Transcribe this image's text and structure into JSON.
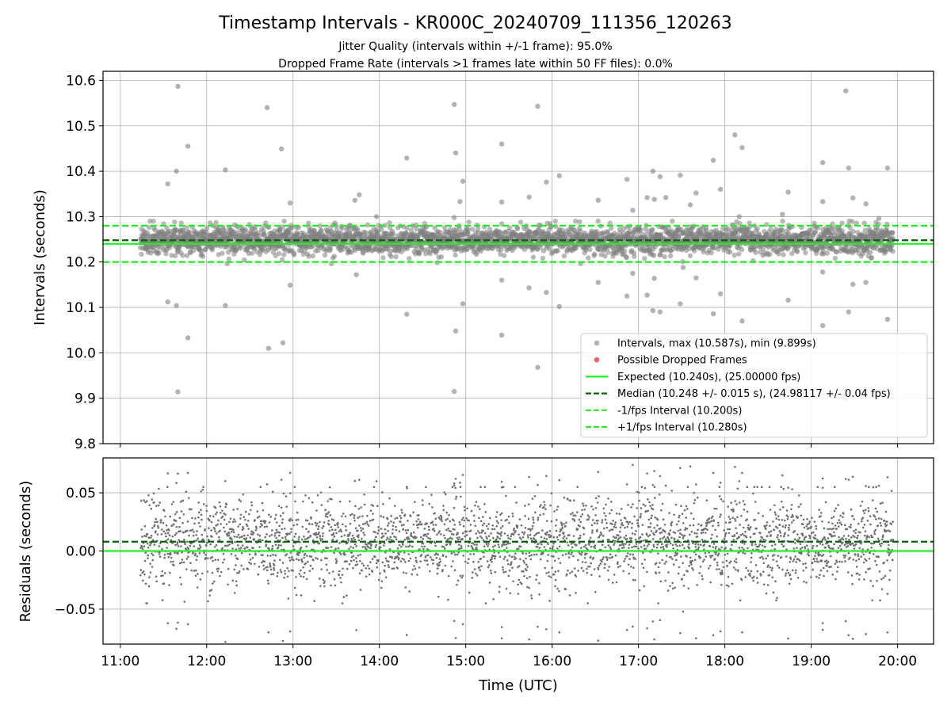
{
  "chart_data": [
    {
      "type": "scatter",
      "panel": "top",
      "title": "Timestamp Intervals - KR000C_20240709_111356_120263",
      "subtitles": [
        "Jitter Quality (intervals within +/-1 frame): 95.0%",
        "Dropped Frame Rate (intervals >1 frames late within 50 FF files): 0.0%"
      ],
      "xlabel": "",
      "ylabel": "Intervals (seconds)",
      "xlim": [
        "10:48",
        "20:25"
      ],
      "ylim": [
        9.8,
        10.62
      ],
      "yticks": [
        "9.8",
        "9.9",
        "10.0",
        "10.1",
        "10.2",
        "10.3",
        "10.4",
        "10.5",
        "10.6"
      ],
      "grid": true,
      "legend": {
        "placement": "lower-right",
        "entries": [
          {
            "label": "Intervals, max (10.587s), min (9.899s)",
            "marker": "circle",
            "color": "#808080"
          },
          {
            "label": "Possible Dropped Frames",
            "marker": "circle",
            "color": "#f25b5b"
          },
          {
            "label": "Expected (10.240s), (25.00000 fps)",
            "marker": "solid-line",
            "color": "#22ee22"
          },
          {
            "label": "Median (10.248 +/- 0.015 s), (24.98117 +/- 0.04 fps)",
            "marker": "dashed-line",
            "color": "#006400"
          },
          {
            "label": "-1/fps Interval (10.200s)",
            "marker": "dashed-line",
            "color": "#22ee22"
          },
          {
            "label": "+1/fps Interval (10.280s)",
            "marker": "dashed-line",
            "color": "#22ee22"
          }
        ]
      },
      "reference_lines": [
        {
          "name": "Expected",
          "y": 10.24,
          "style": "solid",
          "color": "#22ee22"
        },
        {
          "name": "Median",
          "y": 10.248,
          "style": "dashed",
          "color": "#006400"
        },
        {
          "name": "-1/fps Interval",
          "y": 10.2,
          "style": "dashed",
          "color": "#22ee22"
        },
        {
          "name": "+1/fps Interval",
          "y": 10.28,
          "style": "dashed",
          "color": "#22ee22"
        }
      ],
      "series": [
        {
          "name": "Intervals",
          "color": "#808080",
          "time_start": "11:14",
          "time_end": "19:57",
          "sample_interval_seconds": 10.24,
          "center_value": 10.248,
          "spread": 0.015,
          "max": 10.587,
          "min": 9.899,
          "outliers": [
            {
              "x": "11:40",
              "y": 10.587
            },
            {
              "x": "11:39",
              "y": 10.4
            },
            {
              "x": "11:47",
              "y": 10.455
            },
            {
              "x": "11:33",
              "y": 10.372
            },
            {
              "x": "11:33",
              "y": 10.112
            },
            {
              "x": "11:39",
              "y": 10.104
            },
            {
              "x": "11:47",
              "y": 10.033
            },
            {
              "x": "11:40",
              "y": 9.914
            },
            {
              "x": "12:13",
              "y": 10.403
            },
            {
              "x": "12:13",
              "y": 10.104
            },
            {
              "x": "12:42",
              "y": 10.54
            },
            {
              "x": "12:52",
              "y": 10.449
            },
            {
              "x": "12:43",
              "y": 10.01
            },
            {
              "x": "12:53",
              "y": 10.022
            },
            {
              "x": "12:58",
              "y": 10.33
            },
            {
              "x": "12:58",
              "y": 10.149
            },
            {
              "x": "13:43",
              "y": 10.336
            },
            {
              "x": "13:46",
              "y": 10.348
            },
            {
              "x": "13:44",
              "y": 10.172
            },
            {
              "x": "13:58",
              "y": 10.3
            },
            {
              "x": "14:19",
              "y": 10.429
            },
            {
              "x": "14:19",
              "y": 10.085
            },
            {
              "x": "14:52",
              "y": 10.547
            },
            {
              "x": "14:53",
              "y": 10.44
            },
            {
              "x": "14:52",
              "y": 10.298
            },
            {
              "x": "14:58",
              "y": 10.378
            },
            {
              "x": "14:56",
              "y": 10.333
            },
            {
              "x": "14:58",
              "y": 10.108
            },
            {
              "x": "14:53",
              "y": 10.048
            },
            {
              "x": "14:52",
              "y": 9.915
            },
            {
              "x": "15:25",
              "y": 10.46
            },
            {
              "x": "15:25",
              "y": 10.332
            },
            {
              "x": "15:25",
              "y": 10.16
            },
            {
              "x": "15:25",
              "y": 10.039
            },
            {
              "x": "15:44",
              "y": 10.343
            },
            {
              "x": "15:44",
              "y": 10.143
            },
            {
              "x": "15:50",
              "y": 10.543
            },
            {
              "x": "15:50",
              "y": 9.968
            },
            {
              "x": "15:56",
              "y": 10.376
            },
            {
              "x": "15:56",
              "y": 10.133
            },
            {
              "x": "16:05",
              "y": 10.39
            },
            {
              "x": "16:05",
              "y": 10.102
            },
            {
              "x": "16:32",
              "y": 10.336
            },
            {
              "x": "16:32",
              "y": 10.155
            },
            {
              "x": "16:52",
              "y": 10.382
            },
            {
              "x": "16:52",
              "y": 10.125
            },
            {
              "x": "16:56",
              "y": 10.314
            },
            {
              "x": "16:56",
              "y": 10.175
            },
            {
              "x": "17:06",
              "y": 10.342
            },
            {
              "x": "17:06",
              "y": 10.127
            },
            {
              "x": "17:10",
              "y": 10.4
            },
            {
              "x": "17:11",
              "y": 10.338
            },
            {
              "x": "17:11",
              "y": 10.164
            },
            {
              "x": "17:10",
              "y": 10.093
            },
            {
              "x": "17:15",
              "y": 10.388
            },
            {
              "x": "17:15",
              "y": 10.09
            },
            {
              "x": "17:19",
              "y": 10.342
            },
            {
              "x": "17:29",
              "y": 10.391
            },
            {
              "x": "17:29",
              "y": 10.108
            },
            {
              "x": "17:31",
              "y": 10.188
            },
            {
              "x": "17:36",
              "y": 10.326
            },
            {
              "x": "17:40",
              "y": 10.352
            },
            {
              "x": "17:40",
              "y": 10.165
            },
            {
              "x": "17:52",
              "y": 10.424
            },
            {
              "x": "17:52",
              "y": 10.086
            },
            {
              "x": "17:57",
              "y": 10.36
            },
            {
              "x": "17:57",
              "y": 10.13
            },
            {
              "x": "18:07",
              "y": 10.48
            },
            {
              "x": "18:12",
              "y": 10.452
            },
            {
              "x": "18:10",
              "y": 10.3
            },
            {
              "x": "18:12",
              "y": 10.07
            },
            {
              "x": "18:40",
              "y": 10.305
            },
            {
              "x": "18:44",
              "y": 10.354
            },
            {
              "x": "18:44",
              "y": 10.116
            },
            {
              "x": "19:08",
              "y": 10.419
            },
            {
              "x": "19:08",
              "y": 10.333
            },
            {
              "x": "19:08",
              "y": 10.178
            },
            {
              "x": "19:08",
              "y": 10.06
            },
            {
              "x": "19:24",
              "y": 10.577
            },
            {
              "x": "19:26",
              "y": 10.407
            },
            {
              "x": "19:29",
              "y": 10.341
            },
            {
              "x": "19:29",
              "y": 10.151
            },
            {
              "x": "19:26",
              "y": 10.09
            },
            {
              "x": "19:24",
              "y": 9.899
            },
            {
              "x": "19:38",
              "y": 10.328
            },
            {
              "x": "19:38",
              "y": 10.155
            },
            {
              "x": "19:47",
              "y": 10.296
            },
            {
              "x": "19:53",
              "y": 10.407
            },
            {
              "x": "19:53",
              "y": 10.074
            }
          ]
        }
      ]
    },
    {
      "type": "scatter",
      "panel": "bottom",
      "xlabel": "Time (UTC)",
      "ylabel": "Residuals (seconds)",
      "xlim": [
        "10:48",
        "20:25"
      ],
      "ylim": [
        -0.08,
        0.08
      ],
      "xticks": [
        "11:00",
        "12:00",
        "13:00",
        "14:00",
        "15:00",
        "16:00",
        "17:00",
        "18:00",
        "19:00",
        "20:00"
      ],
      "yticks": [
        "−0.05",
        "0.00",
        "0.05"
      ],
      "grid": true,
      "reference_lines": [
        {
          "name": "Expected",
          "y": 0.0,
          "style": "solid",
          "color": "#22ee22"
        },
        {
          "name": "Median",
          "y": 0.008,
          "style": "dashed",
          "color": "#006400"
        }
      ],
      "series": [
        {
          "name": "Residuals",
          "color": "#707070",
          "time_start": "11:14",
          "time_end": "19:57",
          "sample_interval_seconds": 10.24,
          "center_value": 0.008,
          "spread": 0.02,
          "max": 0.075,
          "min": -0.08
        }
      ]
    }
  ]
}
